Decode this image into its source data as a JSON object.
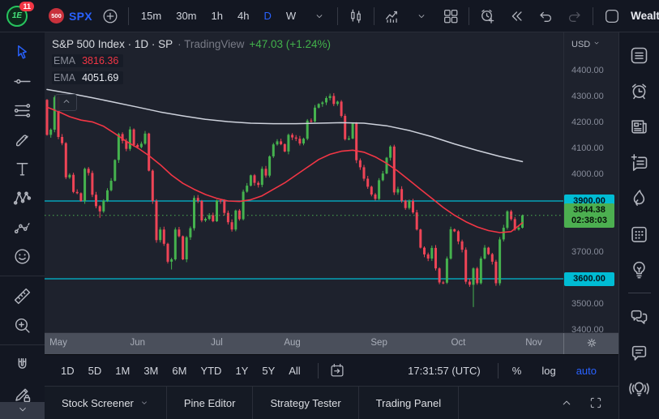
{
  "colors": {
    "up": "#45b24e",
    "down": "#ee4456",
    "ema_fast": "#f23645",
    "ema_slow": "#ced2dc",
    "level_line": "#00bcd4",
    "price_line": "#4caf50",
    "accent_blue": "#2962ff",
    "chip_level_bg": "#00bcd4",
    "chip_price_bg": "#4caf50",
    "chart_bg": "#1e222d",
    "panel_bg": "#131722"
  },
  "topbar": {
    "logo_text": "1E",
    "notification_count": "11",
    "symbol_badge": "500",
    "symbol": "SPX",
    "intervals": [
      "15m",
      "30m",
      "1h",
      "4h",
      "D",
      "W"
    ],
    "active_interval": "D",
    "account_label": "Wealthy"
  },
  "left_toolbar": {
    "tools": [
      {
        "icon": "cursor",
        "active": true
      },
      {
        "icon": "trend-line"
      },
      {
        "icon": "fib-lines"
      },
      {
        "icon": "brush"
      },
      {
        "icon": "text"
      },
      {
        "icon": "xabcd-pattern"
      },
      {
        "icon": "forecast"
      },
      {
        "icon": "emoji"
      },
      {
        "sep": true
      },
      {
        "icon": "ruler"
      },
      {
        "icon": "zoom-in"
      },
      {
        "sep": true
      },
      {
        "icon": "magnet"
      },
      {
        "icon": "edit-lock"
      }
    ]
  },
  "right_sidebar": {
    "items": [
      {
        "icon": "watchlist"
      },
      {
        "icon": "alerts-clock"
      },
      {
        "icon": "news"
      },
      {
        "icon": "note-plus"
      },
      {
        "icon": "flame"
      },
      {
        "icon": "calendar"
      },
      {
        "icon": "idea-bulb"
      },
      {
        "sep": true
      },
      {
        "icon": "chats"
      },
      {
        "icon": "chat-message"
      },
      {
        "icon": "broadcast-bulb"
      }
    ]
  },
  "chart": {
    "legend": {
      "left": "S&P 500 Index · 1D · SP",
      "provider": "· TradingView",
      "change": "+47.03 (+1.24%)"
    },
    "indicators": [
      {
        "label": "EMA",
        "value": "3816.36",
        "color": "#f23645"
      },
      {
        "label": "EMA",
        "value": "4051.69",
        "color": "#e8eaf0"
      }
    ],
    "currency": "USD",
    "price_axis": [
      {
        "label": "4400.00",
        "value": 4400
      },
      {
        "label": "4300.00",
        "value": 4300
      },
      {
        "label": "4200.00",
        "value": 4200
      },
      {
        "label": "4100.00",
        "value": 4100
      },
      {
        "label": "4000.00",
        "value": 4000
      },
      {
        "label": "3700.00",
        "value": 3700
      },
      {
        "label": "3500.00",
        "value": 3500
      },
      {
        "label": "3400.00",
        "value": 3400
      }
    ],
    "levels": [
      {
        "label": "3900.00",
        "value": 3900
      },
      {
        "label": "3600.00",
        "value": 3600
      }
    ],
    "last_price": {
      "label": "3844.38",
      "countdown": "02:38:03",
      "value": 3844.38
    }
  },
  "chart_data": {
    "type": "candlestick",
    "title": "S&P 500 Index",
    "interval": "1D",
    "exchange": "SP",
    "change_text": "+47.03 (+1.24%)",
    "last_close": 3844.38,
    "y_axis": {
      "min": 3394,
      "max": 4550,
      "tick_step": 100
    },
    "horizontal_lines": [
      3900,
      3600
    ],
    "price_line": 3844.38,
    "first_open": 4290,
    "closes": [
      4155,
      4175,
      4300,
      4147,
      4123,
      3991,
      4001,
      3935,
      3930,
      3900,
      4024,
      4008,
      3924,
      3880,
      3860,
      3901,
      3941,
      3978,
      4058,
      4158,
      4132,
      4101,
      4176,
      4116,
      4108,
      4121,
      4160,
      4017,
      3900,
      3749,
      3790,
      3735,
      3666,
      3675,
      3790,
      3764,
      3675,
      3760,
      3795,
      3912,
      3900,
      3825,
      3831,
      3845,
      3822,
      3902,
      3900,
      3854,
      3818,
      3790,
      3863,
      3830,
      3936,
      3959,
      3999,
      3970,
      3962,
      4024,
      3998,
      4072,
      4118,
      4130,
      4119,
      4091,
      4155,
      4145,
      4140,
      4122,
      4140,
      4210,
      4207,
      4260,
      4274,
      4280,
      4297,
      4305,
      4274,
      4283,
      4228,
      4138,
      4141,
      4199,
      4057,
      4030,
      3986,
      3955,
      3925,
      3908,
      3980,
      4006,
      4067,
      4110,
      3933,
      3946,
      3901,
      3873,
      3900,
      3856,
      3790,
      3720,
      3694,
      3678,
      3719,
      3640,
      3586,
      3585,
      3678,
      3791,
      3783,
      3744,
      3712,
      3589,
      3577,
      3640,
      3583,
      3678,
      3720,
      3695,
      3666,
      3583,
      3752,
      3797,
      3860,
      3830,
      3790,
      3797,
      3844.38
    ],
    "wick_low_overrides": {
      "14": 3835,
      "33": 3636,
      "113": 3491
    },
    "ema_fast": {
      "label": "EMA",
      "last_value": 3816.36,
      "anchors": [
        [
          0,
          4262
        ],
        [
          3,
          4245
        ],
        [
          6,
          4225
        ],
        [
          9,
          4212
        ],
        [
          12,
          4205
        ],
        [
          15,
          4188
        ],
        [
          18,
          4160
        ],
        [
          21,
          4130
        ],
        [
          24,
          4105
        ],
        [
          27,
          4075
        ],
        [
          30,
          4040
        ],
        [
          33,
          4000
        ],
        [
          36,
          3968
        ],
        [
          39,
          3945
        ],
        [
          42,
          3925
        ],
        [
          45,
          3910
        ],
        [
          48,
          3900
        ],
        [
          51,
          3898
        ],
        [
          54,
          3905
        ],
        [
          57,
          3920
        ],
        [
          60,
          3945
        ],
        [
          63,
          3970
        ],
        [
          66,
          4000
        ],
        [
          69,
          4030
        ],
        [
          72,
          4060
        ],
        [
          75,
          4080
        ],
        [
          78,
          4092
        ],
        [
          81,
          4096
        ],
        [
          84,
          4088
        ],
        [
          87,
          4070
        ],
        [
          90,
          4045
        ],
        [
          93,
          4015
        ],
        [
          96,
          3980
        ],
        [
          99,
          3945
        ],
        [
          102,
          3910
        ],
        [
          105,
          3875
        ],
        [
          108,
          3845
        ],
        [
          111,
          3820
        ],
        [
          114,
          3800
        ],
        [
          117,
          3786
        ],
        [
          120,
          3778
        ],
        [
          123,
          3782
        ],
        [
          126,
          3816
        ]
      ]
    },
    "ema_slow": {
      "label": "EMA",
      "last_value": 4051.69,
      "anchors": [
        [
          0,
          4330
        ],
        [
          6,
          4315
        ],
        [
          12,
          4298
        ],
        [
          18,
          4280
        ],
        [
          24,
          4262
        ],
        [
          30,
          4243
        ],
        [
          36,
          4228
        ],
        [
          42,
          4215
        ],
        [
          48,
          4206
        ],
        [
          54,
          4200
        ],
        [
          60,
          4198
        ],
        [
          66,
          4198
        ],
        [
          72,
          4200
        ],
        [
          78,
          4202
        ],
        [
          84,
          4200
        ],
        [
          90,
          4190
        ],
        [
          96,
          4172
        ],
        [
          102,
          4148
        ],
        [
          108,
          4120
        ],
        [
          114,
          4095
        ],
        [
          120,
          4072
        ],
        [
          126,
          4052
        ]
      ]
    },
    "x_axis_months": [
      [
        "May",
        3
      ],
      [
        "Jun",
        24
      ],
      [
        "Jul",
        45
      ],
      [
        "Aug",
        65
      ],
      [
        "Sep",
        88
      ],
      [
        "Oct",
        109
      ],
      [
        "Nov",
        129
      ]
    ]
  },
  "toolbar_bottom": {
    "ranges": [
      "1D",
      "5D",
      "1M",
      "3M",
      "6M",
      "YTD",
      "1Y",
      "5Y",
      "All"
    ],
    "time": "17:31:57 (UTC)",
    "percent_label": "%",
    "log_label": "log",
    "auto_label": "auto"
  },
  "tabs_bar": {
    "tabs": [
      "Stock Screener",
      "Pine Editor",
      "Strategy Tester",
      "Trading Panel"
    ]
  }
}
